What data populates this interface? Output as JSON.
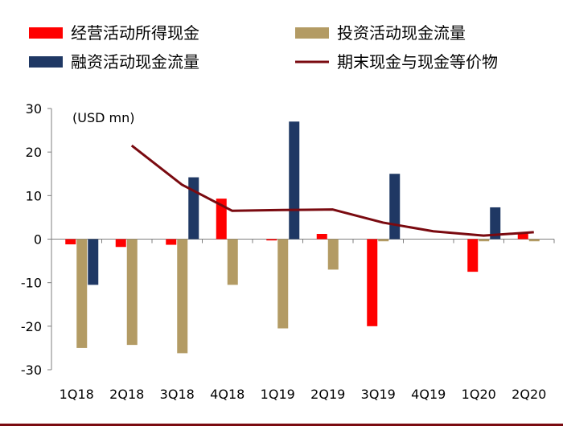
{
  "chart_data": {
    "type": "bar",
    "categories": [
      "1Q18",
      "2Q18",
      "3Q18",
      "4Q18",
      "1Q19",
      "2Q19",
      "3Q19",
      "4Q19",
      "1Q20",
      "2Q20"
    ],
    "ylim": [
      -30,
      30
    ],
    "yticks": [
      30,
      20,
      10,
      0,
      -10,
      -20,
      -30
    ],
    "ytick_labels": [
      "30",
      "20",
      "10",
      "0",
      "-10",
      "-20",
      "-30"
    ],
    "unit_note": "(USD mn)",
    "series": [
      {
        "name": "经营活动所得现金",
        "kind": "bar",
        "color": "#ff0000",
        "values": [
          -1.2,
          -1.8,
          -1.3,
          9.3,
          -0.3,
          1.2,
          -20.0,
          0.0,
          -7.5,
          1.5
        ]
      },
      {
        "name": "投资活动现金流量",
        "kind": "bar",
        "color": "#b39b64",
        "values": [
          -25.0,
          -24.3,
          -26.2,
          -10.5,
          -20.5,
          -7.0,
          -0.5,
          0.0,
          -0.5,
          -0.5
        ]
      },
      {
        "name": "融资活动现金流量",
        "kind": "bar",
        "color": "#1f3864",
        "values": [
          -10.5,
          0.0,
          14.2,
          0.0,
          27.0,
          0.0,
          15.0,
          0.0,
          7.3,
          0.0
        ]
      },
      {
        "name": "期末现金与现金等价物",
        "kind": "line",
        "color": "#7a0a10",
        "values": [
          null,
          21.5,
          12.5,
          6.5,
          6.7,
          6.8,
          3.8,
          1.8,
          0.8,
          1.6
        ]
      }
    ]
  }
}
